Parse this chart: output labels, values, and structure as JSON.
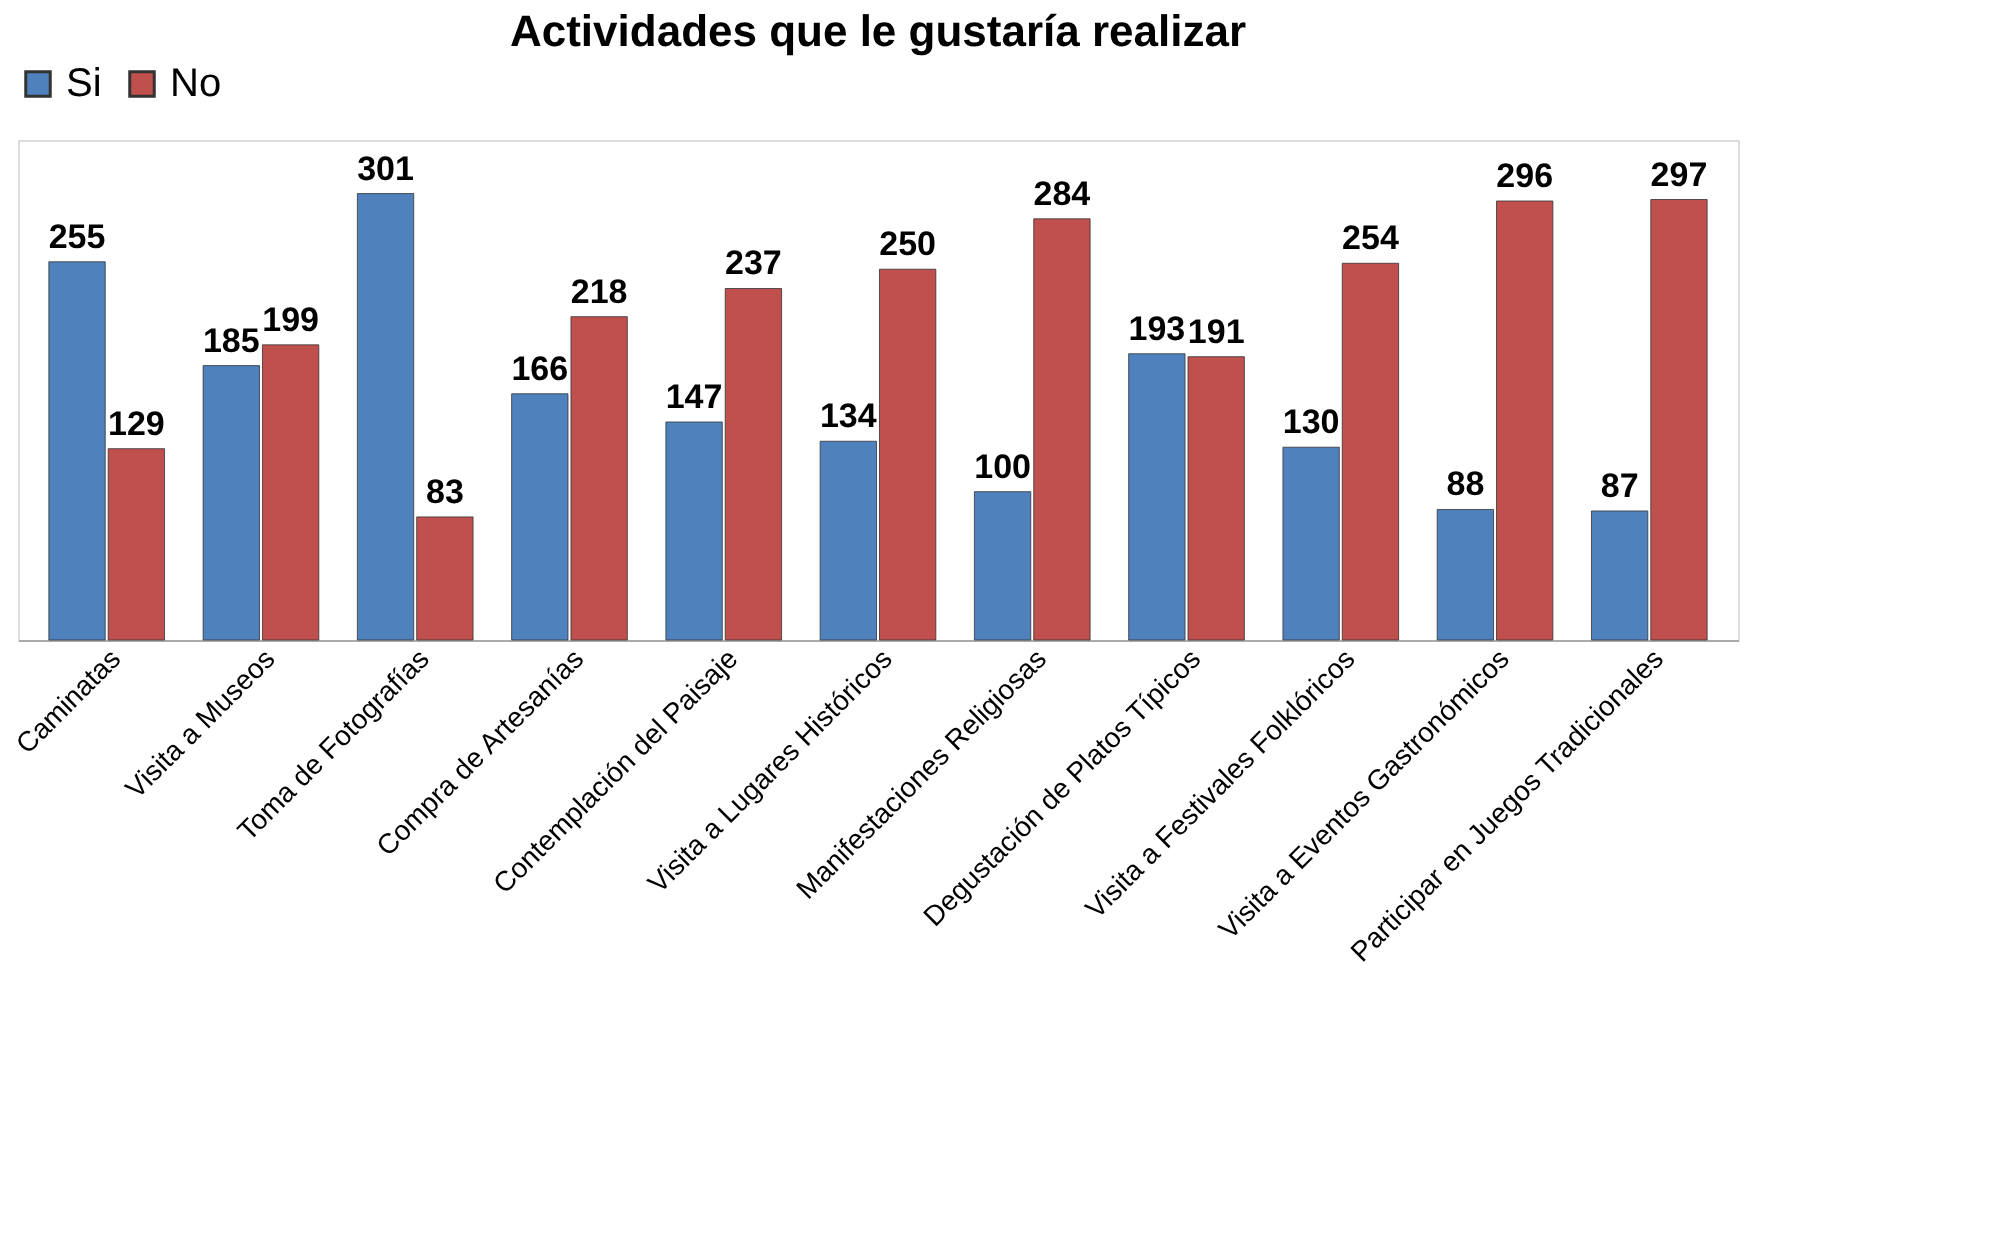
{
  "chart_data": {
    "type": "bar",
    "title": "Actividades que le gustaría realizar",
    "categories": [
      "Caminatas",
      "Visita a Museos",
      "Toma de Fotografías",
      "Compra de Artesanías",
      "Contemplación del Paisaje",
      "Visita a Lugares Históricos",
      "Manifestaciones Religiosas",
      "Degustación de Platos Típicos",
      "Visita a Festivales Folklóricos",
      "Visita a Eventos Gastronómicos",
      "Participar en Juegos Tradicionales"
    ],
    "series": [
      {
        "name": "Si",
        "color": "#4f81bd",
        "values": [
          255,
          185,
          301,
          166,
          147,
          134,
          100,
          193,
          130,
          88,
          87
        ]
      },
      {
        "name": "No",
        "color": "#c0504d",
        "values": [
          129,
          199,
          83,
          218,
          237,
          250,
          284,
          191,
          254,
          296,
          297
        ]
      }
    ],
    "data_labels": true,
    "legend": "top",
    "grid": false
  }
}
